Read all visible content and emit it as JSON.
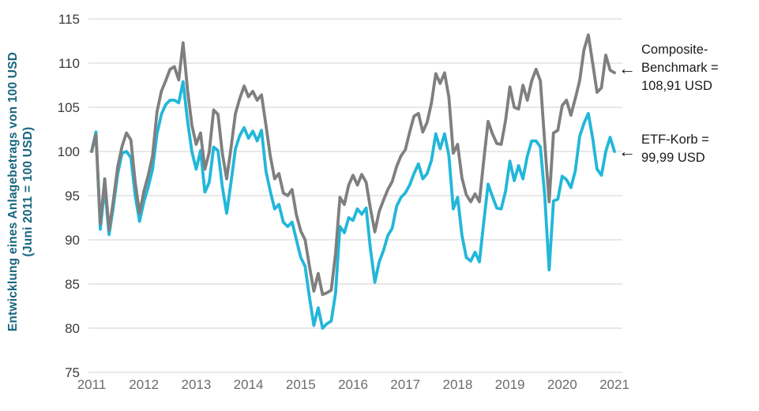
{
  "colors": {
    "composite_line": "#7f7f7f",
    "etf_line": "#22b7d9",
    "axis_title": "#17657f",
    "grid": "#d9d9d9",
    "y_tick_text": "#3a3a3a",
    "x_tick_text": "#6b6b6b",
    "annotation_text": "#1a1a1a"
  },
  "annotations": {
    "composite": {
      "arrow": "←",
      "lines": [
        "Composite-",
        "Benchmark =",
        "108,91 USD"
      ]
    },
    "etf": {
      "arrow": "←",
      "lines": [
        "ETF-Korb =",
        "99,99 USD"
      ]
    }
  },
  "chart_data": {
    "type": "line",
    "title": "",
    "ylabel_lines": [
      "Entwicklung eines Anlagebetrags von 100 USD",
      "(Juni 2011 = 100 USD)"
    ],
    "x_start": "2011-06",
    "x_frequency": "monthly",
    "x_tick_labels": [
      "2011",
      "2012",
      "2013",
      "2014",
      "2015",
      "2016",
      "2017",
      "2018",
      "2019",
      "2020",
      "2021"
    ],
    "months_per_tick": 12,
    "ylim": [
      75,
      115
    ],
    "y_ticks": [
      75,
      80,
      85,
      90,
      95,
      100,
      105,
      110,
      115
    ],
    "grid": true,
    "legend_position": "right-annotations",
    "series": [
      {
        "name": "Composite-Benchmark",
        "color": "#7f7f7f",
        "final_value_label": "108,91 USD",
        "final_value": 108.91,
        "values": [
          100.0,
          101.9,
          91.8,
          96.9,
          91.1,
          94.5,
          98.3,
          100.6,
          102.1,
          101.3,
          96.5,
          93.0,
          95.5,
          97.3,
          99.5,
          104.5,
          106.8,
          108.0,
          109.3,
          109.6,
          108.1,
          112.3,
          107.0,
          103.0,
          100.8,
          102.1,
          98.0,
          99.9,
          104.7,
          104.2,
          99.8,
          96.9,
          100.4,
          104.3,
          106.0,
          107.4,
          106.2,
          106.8,
          105.8,
          106.4,
          103.0,
          99.5,
          96.9,
          97.5,
          95.3,
          95.0,
          95.7,
          92.8,
          91.0,
          90.0,
          87.0,
          84.2,
          86.2,
          83.8,
          84.0,
          84.3,
          88.5,
          94.8,
          94.0,
          96.2,
          97.3,
          96.2,
          97.4,
          96.5,
          93.5,
          90.9,
          93.2,
          94.5,
          95.7,
          96.6,
          98.3,
          99.5,
          100.2,
          102.2,
          104.0,
          104.3,
          102.2,
          103.3,
          105.5,
          108.8,
          107.7,
          108.9,
          106.1,
          99.8,
          100.8,
          97.0,
          95.1,
          94.3,
          95.2,
          94.3,
          99.0,
          103.4,
          102.0,
          100.9,
          100.8,
          103.5,
          107.3,
          105.0,
          104.8,
          107.5,
          105.8,
          108.0,
          109.3,
          108.0,
          101.0,
          94.3,
          102.1,
          102.4,
          105.2,
          105.8,
          104.1,
          106.0,
          108.0,
          111.5,
          113.2,
          110.0,
          106.7,
          107.2,
          110.9,
          109.2,
          108.91
        ]
      },
      {
        "name": "ETF-Korb",
        "color": "#22b7d9",
        "final_value_label": "99,99 USD",
        "final_value": 99.99,
        "values": [
          100.0,
          102.2,
          91.2,
          96.0,
          90.6,
          93.8,
          97.5,
          99.8,
          100.0,
          99.3,
          95.0,
          92.1,
          94.3,
          96.0,
          98.0,
          102.0,
          104.2,
          105.3,
          105.8,
          105.8,
          105.5,
          107.9,
          103.5,
          100.0,
          98.0,
          100.1,
          95.4,
          96.5,
          100.5,
          100.1,
          96.0,
          93.0,
          96.5,
          100.3,
          101.8,
          102.7,
          101.5,
          102.3,
          101.2,
          102.4,
          97.8,
          95.5,
          93.5,
          94.0,
          92.0,
          91.5,
          92.0,
          90.0,
          88.0,
          87.0,
          83.5,
          80.3,
          82.3,
          80.0,
          80.5,
          80.8,
          84.0,
          91.5,
          90.8,
          92.5,
          92.2,
          93.5,
          92.9,
          93.6,
          88.9,
          85.2,
          87.5,
          88.8,
          90.5,
          91.3,
          93.8,
          94.8,
          95.3,
          96.2,
          97.5,
          98.6,
          96.9,
          97.5,
          99.0,
          102.0,
          100.3,
          102.0,
          99.5,
          93.5,
          94.8,
          90.5,
          88.0,
          87.6,
          88.6,
          87.5,
          92.0,
          96.3,
          94.9,
          93.6,
          93.5,
          95.5,
          98.9,
          96.7,
          98.4,
          96.9,
          99.5,
          101.2,
          101.2,
          100.5,
          95.0,
          86.6,
          94.4,
          94.6,
          97.2,
          96.8,
          95.9,
          97.8,
          101.7,
          103.2,
          104.3,
          101.5,
          98.0,
          97.3,
          100.0,
          101.6,
          99.99
        ]
      }
    ]
  }
}
